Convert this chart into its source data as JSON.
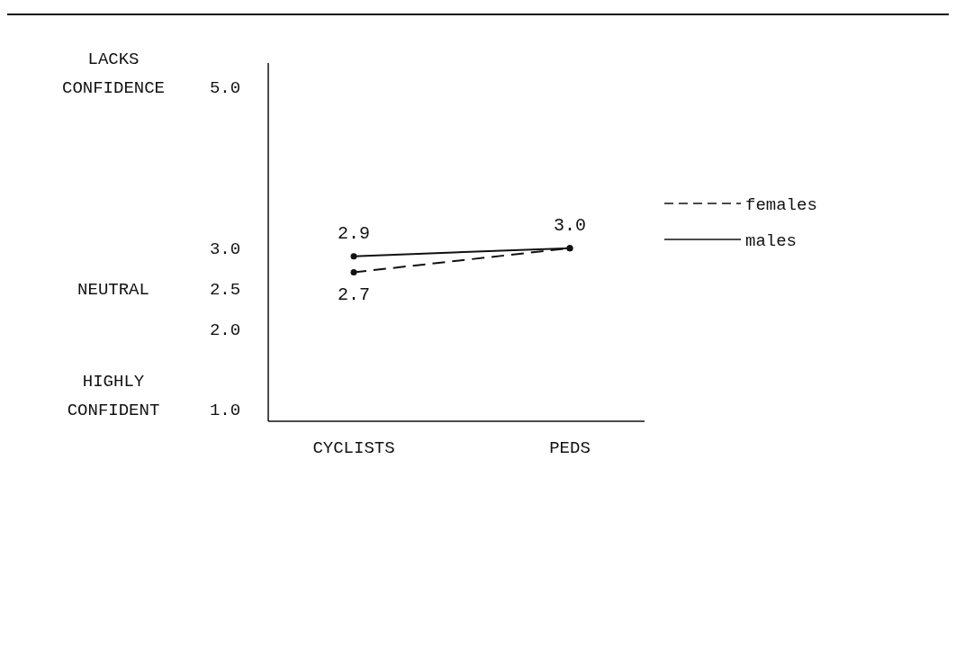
{
  "chart_data": {
    "type": "line",
    "categories": [
      "CYCLISTS",
      "PEDS"
    ],
    "series": [
      {
        "name": "females",
        "color": "#111111",
        "line_style": "dashed",
        "values": [
          2.7,
          3.0
        ],
        "value_labels": [
          "2.7",
          null
        ]
      },
      {
        "name": "males",
        "color": "#111111",
        "line_style": "solid",
        "values": [
          2.9,
          3.0
        ],
        "value_labels": [
          "2.9",
          "3.0"
        ]
      }
    ],
    "ylim": [
      0.85,
      5.3
    ],
    "yticks": [
      {
        "value": 1,
        "label": "1.0"
      },
      {
        "value": 2,
        "label": "2.0"
      },
      {
        "value": 2.5,
        "label": "2.5"
      },
      {
        "value": 3,
        "label": "3.0"
      },
      {
        "value": 5,
        "label": "5.0"
      }
    ],
    "annotations": [
      "LACKS CONFIDENCE",
      "NEUTRAL",
      "HIGHLY CONFIDENT"
    ],
    "marker": "circle",
    "legend": "top right",
    "grid": false
  }
}
